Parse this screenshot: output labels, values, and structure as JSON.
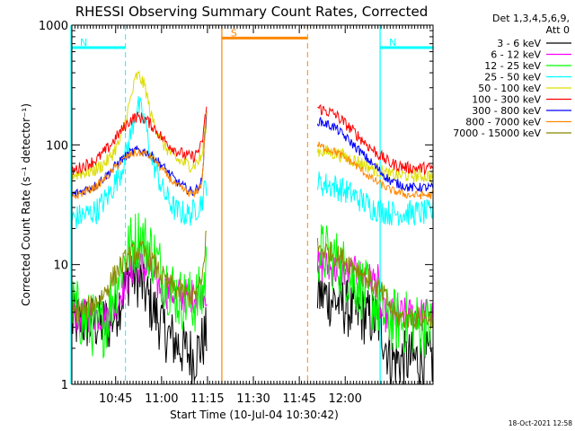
{
  "chart_data": {
    "type": "line",
    "title": "RHESSI Observing Summary Count Rates, Corrected",
    "xlabel": "Start Time (10-Jul-04 10:30:42)",
    "ylabel": "Corrected Count Rate (s⁻¹ detector⁻¹)",
    "yscale": "log",
    "xlim_minutes": [
      0,
      118
    ],
    "ylim": [
      1,
      1000
    ],
    "x_ticks": [
      {
        "minutes": 14.3,
        "label": "10:45"
      },
      {
        "minutes": 29.3,
        "label": "11:00"
      },
      {
        "minutes": 44.3,
        "label": "11:15"
      },
      {
        "minutes": 59.3,
        "label": "11:30"
      },
      {
        "minutes": 74.3,
        "label": "11:45"
      },
      {
        "minutes": 89.3,
        "label": "12:00"
      }
    ],
    "y_ticks": [
      {
        "value": 1,
        "label": "1"
      },
      {
        "value": 10,
        "label": "10"
      },
      {
        "value": 100,
        "label": "100"
      },
      {
        "value": 1000,
        "label": "1000"
      }
    ],
    "legend": {
      "header": [
        "Det 1,3,4,5,6,9,",
        "Att 0"
      ],
      "placement": "right"
    },
    "series": [
      {
        "name": "3 - 6 keV",
        "color": "#000000",
        "noise": 0.5,
        "points": [
          [
            0,
            3.3
          ],
          [
            12,
            3.2
          ],
          [
            14,
            3.9
          ],
          [
            16,
            5.2
          ],
          [
            19,
            8.5
          ],
          [
            22,
            7.5
          ],
          [
            26,
            4.5
          ],
          [
            31,
            2.6
          ],
          [
            36,
            2
          ],
          [
            40,
            1.7
          ],
          [
            42.5,
            2.2
          ],
          [
            44,
            2.6
          ],
          [
            48,
            null
          ],
          [
            80,
            5.8
          ],
          [
            86,
            5
          ],
          [
            92,
            4
          ],
          [
            100,
            3.4
          ],
          [
            102,
            2.5
          ],
          [
            104,
            1.6
          ],
          [
            118,
            1.6
          ]
        ]
      },
      {
        "name": "6 - 12 keV",
        "color": "#ff00ff",
        "noise": 0.3,
        "points": [
          [
            0,
            3.7
          ],
          [
            12,
            3.8
          ],
          [
            14,
            4.3
          ],
          [
            17,
            6.8
          ],
          [
            21,
            10
          ],
          [
            25,
            9
          ],
          [
            28,
            6.8
          ],
          [
            31,
            6
          ],
          [
            36,
            5.5
          ],
          [
            40,
            5.5
          ],
          [
            42.5,
            6
          ],
          [
            44,
            6
          ],
          [
            48,
            null
          ],
          [
            80,
            10
          ],
          [
            86,
            9
          ],
          [
            92,
            8.5
          ],
          [
            97,
            7.5
          ],
          [
            100,
            7.2
          ],
          [
            101,
            3.8
          ],
          [
            118,
            3.8
          ]
        ]
      },
      {
        "name": "12 - 25 keV",
        "color": "#00ff00",
        "noise": 0.55,
        "points": [
          [
            0,
            4.6
          ],
          [
            5,
            3.2
          ],
          [
            10,
            3
          ],
          [
            12,
            4
          ],
          [
            15,
            8
          ],
          [
            19,
            14
          ],
          [
            22,
            17
          ],
          [
            26,
            13
          ],
          [
            30,
            8
          ],
          [
            35,
            5.2
          ],
          [
            40,
            4.8
          ],
          [
            42.5,
            5.6
          ],
          [
            44,
            9
          ],
          [
            48,
            null
          ],
          [
            80,
            13
          ],
          [
            86,
            11
          ],
          [
            92,
            7.5
          ],
          [
            97,
            5.5
          ],
          [
            100,
            4.5
          ],
          [
            103,
            3.5
          ],
          [
            118,
            3
          ]
        ]
      },
      {
        "name": "25 - 50 keV",
        "color": "#00ffff",
        "noise": 0.22,
        "points": [
          [
            0,
            24
          ],
          [
            8,
            28
          ],
          [
            12,
            38
          ],
          [
            16,
            60
          ],
          [
            19,
            115
          ],
          [
            21,
            200
          ],
          [
            22,
            205
          ],
          [
            24,
            150
          ],
          [
            26,
            78
          ],
          [
            30,
            40
          ],
          [
            34,
            28
          ],
          [
            38,
            26
          ],
          [
            40,
            28
          ],
          [
            42.5,
            34
          ],
          [
            44,
            48
          ],
          [
            48,
            null
          ],
          [
            80,
            48
          ],
          [
            86,
            45
          ],
          [
            92,
            38
          ],
          [
            98,
            30
          ],
          [
            104,
            27
          ],
          [
            118,
            27
          ]
        ]
      },
      {
        "name": "50 - 100 keV",
        "color": "#dddd00",
        "noise": 0.12,
        "points": [
          [
            0,
            56
          ],
          [
            8,
            62
          ],
          [
            12,
            75
          ],
          [
            16,
            110
          ],
          [
            19,
            230
          ],
          [
            21,
            370
          ],
          [
            22,
            375
          ],
          [
            24,
            300
          ],
          [
            26,
            170
          ],
          [
            30,
            100
          ],
          [
            34,
            76
          ],
          [
            38,
            68
          ],
          [
            40,
            68
          ],
          [
            42.5,
            80
          ],
          [
            44,
            160
          ],
          [
            48,
            null
          ],
          [
            80,
            90
          ],
          [
            86,
            85
          ],
          [
            92,
            75
          ],
          [
            98,
            64
          ],
          [
            104,
            56
          ],
          [
            118,
            55
          ]
        ]
      },
      {
        "name": "100 - 300 keV",
        "color": "#ff0000",
        "noise": 0.1,
        "points": [
          [
            0,
            60
          ],
          [
            8,
            75
          ],
          [
            12,
            95
          ],
          [
            16,
            130
          ],
          [
            19,
            160
          ],
          [
            21,
            172
          ],
          [
            24,
            165
          ],
          [
            27,
            138
          ],
          [
            30,
            110
          ],
          [
            34,
            90
          ],
          [
            38,
            80
          ],
          [
            40,
            80
          ],
          [
            42.5,
            100
          ],
          [
            44,
            210
          ],
          [
            48,
            null
          ],
          [
            80,
            205
          ],
          [
            86,
            180
          ],
          [
            92,
            130
          ],
          [
            98,
            92
          ],
          [
            104,
            70
          ],
          [
            110,
            64
          ],
          [
            118,
            64
          ]
        ]
      },
      {
        "name": "300 - 800 keV",
        "color": "#0000ff",
        "noise": 0.08,
        "points": [
          [
            0,
            38
          ],
          [
            8,
            46
          ],
          [
            12,
            58
          ],
          [
            16,
            75
          ],
          [
            19,
            85
          ],
          [
            21,
            90
          ],
          [
            24,
            88
          ],
          [
            27,
            78
          ],
          [
            30,
            65
          ],
          [
            34,
            50
          ],
          [
            38,
            42
          ],
          [
            40,
            40
          ],
          [
            42.5,
            50
          ],
          [
            44,
            180
          ],
          [
            48,
            null
          ],
          [
            80,
            160
          ],
          [
            86,
            140
          ],
          [
            92,
            100
          ],
          [
            98,
            70
          ],
          [
            104,
            50
          ],
          [
            110,
            44
          ],
          [
            118,
            44
          ]
        ]
      },
      {
        "name": "800 - 7000 keV",
        "color": "#ff8800",
        "noise": 0.07,
        "points": [
          [
            0,
            36
          ],
          [
            8,
            45
          ],
          [
            12,
            56
          ],
          [
            16,
            72
          ],
          [
            19,
            83
          ],
          [
            21,
            86
          ],
          [
            24,
            85
          ],
          [
            27,
            75
          ],
          [
            30,
            60
          ],
          [
            34,
            46
          ],
          [
            38,
            40
          ],
          [
            40,
            38
          ],
          [
            42.5,
            48
          ],
          [
            44,
            200
          ],
          [
            48,
            null
          ],
          [
            80,
            100
          ],
          [
            86,
            88
          ],
          [
            92,
            70
          ],
          [
            98,
            52
          ],
          [
            104,
            42
          ],
          [
            110,
            38
          ],
          [
            118,
            38
          ]
        ]
      },
      {
        "name": "7000 - 15000 keV",
        "color": "#888800",
        "noise": 0.2,
        "points": [
          [
            0,
            4
          ],
          [
            5,
            4.2
          ],
          [
            10,
            5.5
          ],
          [
            15,
            9
          ],
          [
            19,
            12
          ],
          [
            22,
            13
          ],
          [
            25,
            12
          ],
          [
            28,
            9
          ],
          [
            31,
            7
          ],
          [
            35,
            6
          ],
          [
            38,
            5.5
          ],
          [
            40,
            5.5
          ],
          [
            42.5,
            7
          ],
          [
            44,
            20
          ],
          [
            48,
            null
          ],
          [
            80,
            14
          ],
          [
            86,
            12
          ],
          [
            92,
            10
          ],
          [
            98,
            7
          ],
          [
            102,
            5.5
          ],
          [
            106,
            3.6
          ],
          [
            118,
            3.6
          ]
        ]
      }
    ],
    "annotations": [
      {
        "label": "N",
        "color": "#00ffff",
        "lines_minutes": [
          -0.3,
          17.5
        ],
        "bar_at": 650
      },
      {
        "label": "N",
        "color": "#00ffff",
        "lines_minutes": [
          100.7,
          118
        ],
        "bar_at": 650
      },
      {
        "label": "S",
        "color": "#ff8800",
        "lines_minutes": [
          49,
          77
        ],
        "bar_at": 780
      }
    ],
    "gap_minutes": [
      48,
      80
    ],
    "timestamp": "18-Oct-2021 12:58"
  }
}
